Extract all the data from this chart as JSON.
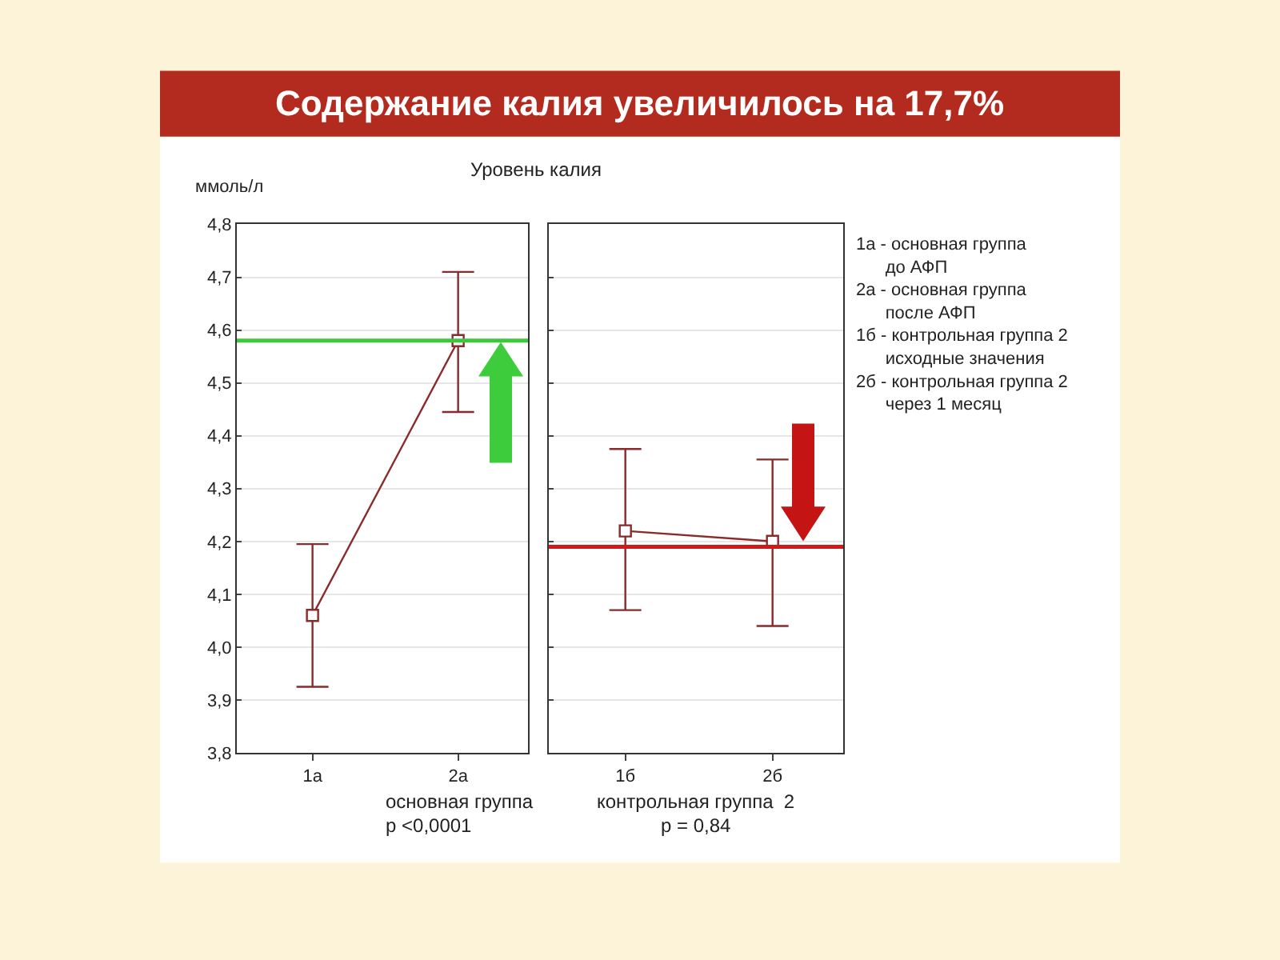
{
  "chart_data": [
    {
      "type": "line",
      "title": "Содержание калия увеличилось на 17,7%",
      "subtitle": "Уровень калия",
      "ylabel": "ммоль/л",
      "xlabel": "основная группа",
      "categories": [
        "1а",
        "2а"
      ],
      "series": [
        {
          "color": "#8b2a2a",
          "values": [
            4.06,
            4.58
          ],
          "errors": [
            [
              3.925,
              4.195
            ],
            [
              4.445,
              4.71
            ]
          ]
        }
      ],
      "ylim": [
        3.8,
        4.8
      ],
      "yticks": [
        {
          "value": 3.8,
          "label": "3,8"
        },
        {
          "value": 3.9,
          "label": "3,9"
        },
        {
          "value": 4.0,
          "label": "4,0"
        },
        {
          "value": 4.1,
          "label": "4,1"
        },
        {
          "value": 4.2,
          "label": "4,2"
        },
        {
          "value": 4.3,
          "label": "4,3"
        },
        {
          "value": 4.4,
          "label": "4,4"
        },
        {
          "value": 4.5,
          "label": "4,5"
        },
        {
          "value": 4.6,
          "label": "4,6"
        },
        {
          "value": 4.7,
          "label": "4,7"
        },
        {
          "value": 4.8,
          "label": "4,8"
        }
      ],
      "ref_lines": [
        {
          "axis": "y",
          "value": 4.58,
          "color": "#3cc83c"
        }
      ],
      "annotations": [
        "p <0,0001"
      ],
      "grid": "y",
      "marker": "square",
      "line_style": "solid"
    },
    {
      "type": "line",
      "xlabel": "контрольная группа  2",
      "categories": [
        "1б",
        "2б"
      ],
      "series": [
        {
          "color": "#8b2a2a",
          "values": [
            4.22,
            4.2
          ],
          "errors": [
            [
              4.07,
              4.375
            ],
            [
              4.04,
              4.355
            ]
          ]
        }
      ],
      "ylim": [
        3.8,
        4.8
      ],
      "yticks": [
        {
          "value": 3.8,
          "label": null
        },
        {
          "value": 3.9,
          "label": null
        },
        {
          "value": 4.0,
          "label": null
        },
        {
          "value": 4.1,
          "label": null
        },
        {
          "value": 4.2,
          "label": null
        },
        {
          "value": 4.3,
          "label": null
        },
        {
          "value": 4.4,
          "label": null
        },
        {
          "value": 4.5,
          "label": null
        },
        {
          "value": 4.6,
          "label": null
        },
        {
          "value": 4.7,
          "label": null
        },
        {
          "value": 4.8,
          "label": null
        }
      ],
      "tick_labels": "x",
      "ref_lines": [
        {
          "axis": "y",
          "value": 4.19,
          "color": "#d01a1a"
        }
      ],
      "annotations": [
        "p = 0,84",
        "1а - основная группа\n      до АФП\n2а - основная группа\n      после АФП\n1б - контрольная группа 2\n      исходные значения\n2б - контрольная группа 2\n      через 1 месяц"
      ],
      "grid": "y",
      "marker": "square",
      "line_style": "solid"
    }
  ]
}
